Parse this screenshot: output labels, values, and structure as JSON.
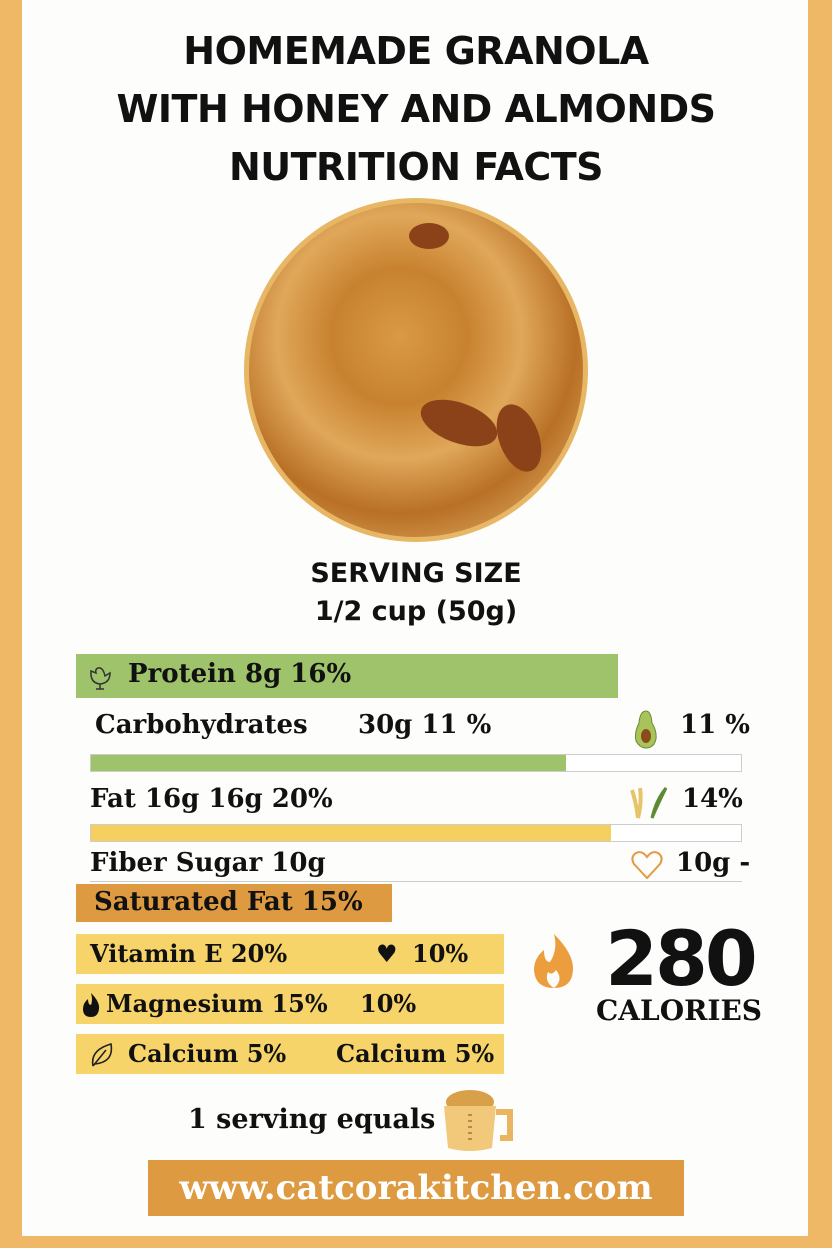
{
  "title": {
    "line1": "HOMEMADE GRANOLA",
    "line2": "WITH HONEY AND ALMONDS",
    "line3": "NUTRITION FACTS"
  },
  "serving": {
    "label": "SERVING SIZE",
    "value": "1/2 cup (50g)"
  },
  "protein": {
    "label": "Protein 8g 16%",
    "icon": "chicken-icon",
    "color": "#9fc36a"
  },
  "carbs": {
    "label": "Carbohydrates",
    "value": "30g 11 %",
    "right": "11 %",
    "icon": "avocado-icon",
    "progress_percent": 73,
    "color": "#9fc36a"
  },
  "fat": {
    "label": "Fat 16g 16g 20%",
    "right": "14%",
    "icon": "wheat-icon",
    "progress_percent": 80,
    "color": "#f5cf5f"
  },
  "fiber": {
    "label": "Fiber  Sugar 10g",
    "right": "10g -",
    "icon": "heart-outline-icon"
  },
  "saturated": {
    "label": "Saturated Fat 15%",
    "color": "#dd9a40"
  },
  "vitamins": [
    {
      "left": "Vitamin E 20%",
      "right": "10%",
      "icon": "heart-icon"
    },
    {
      "left": "Magnesium 15%",
      "right": "10%",
      "icon": "flame-icon"
    },
    {
      "left": "Calcium 5%",
      "right": "Calcium 5%",
      "icon": "leaf-icon"
    }
  ],
  "calories": {
    "value": "280",
    "label": "CALORIES",
    "icon": "flame-icon"
  },
  "equals": {
    "label": "1 serving equals",
    "icon": "measuring-cup-icon"
  },
  "website": "www.catcorakitchen.com"
}
